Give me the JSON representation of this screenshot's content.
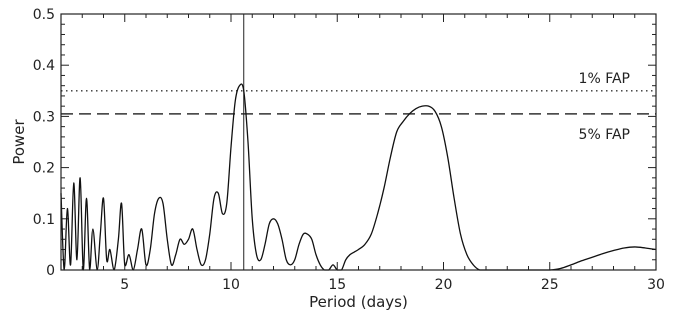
{
  "chart_data": {
    "type": "line",
    "title": "",
    "xlabel": "Period (days)",
    "ylabel": "Power",
    "xlim": [
      2,
      30
    ],
    "ylim": [
      0,
      0.5
    ],
    "x_ticks": [
      5,
      10,
      15,
      20,
      25,
      30
    ],
    "y_ticks": [
      0,
      0.1,
      0.2,
      0.3,
      0.4,
      0.5
    ],
    "x_tick_labels": [
      "5",
      "10",
      "15",
      "20",
      "25",
      "30"
    ],
    "y_tick_labels": [
      "0",
      "0.1",
      "0.2",
      "0.3",
      "0.4",
      "0.5"
    ],
    "grid": false,
    "legend": "none",
    "thresholds": [
      {
        "label": "1% FAP",
        "y": 0.35,
        "style": "dotted"
      },
      {
        "label": "5% FAP",
        "y": 0.305,
        "style": "dashed"
      }
    ],
    "marker_line": {
      "x": 10.6
    },
    "series": [
      {
        "x": [
          2.0,
          2.15,
          2.3,
          2.45,
          2.6,
          2.75,
          2.9,
          3.05,
          3.2,
          3.35,
          3.5,
          3.7,
          3.85,
          4.0,
          4.15,
          4.3,
          4.5,
          4.7,
          4.85,
          5.0,
          5.2,
          5.4,
          5.6,
          5.8,
          6.0,
          6.2,
          6.4,
          6.6,
          6.8,
          7.0,
          7.2,
          7.4,
          7.6,
          7.8,
          8.0,
          8.2,
          8.4,
          8.6,
          8.8,
          9.0,
          9.2,
          9.4,
          9.6,
          9.8,
          10.0,
          10.2,
          10.4,
          10.6,
          10.8,
          11.0,
          11.2,
          11.4,
          11.6,
          11.8,
          12.0,
          12.2,
          12.4,
          12.6,
          12.8,
          13.0,
          13.2,
          13.4,
          13.6,
          13.8,
          14.0,
          14.2,
          14.4,
          14.6,
          14.8,
          15.0,
          15.2,
          15.4,
          15.6,
          15.8,
          16.0,
          16.3,
          16.6,
          16.9,
          17.2,
          17.5,
          17.8,
          18.1,
          18.4,
          18.7,
          19.0,
          19.3,
          19.6,
          19.9,
          20.2,
          20.5,
          20.8,
          21.1,
          21.4,
          21.7,
          22.0,
          22.3,
          22.6,
          22.9,
          23.2,
          23.5,
          24.0,
          24.5,
          25.0,
          25.5,
          26.0,
          26.5,
          27.0,
          27.5,
          28.0,
          28.5,
          29.0,
          29.5,
          30.0
        ],
        "y": [
          0.15,
          0.0,
          0.12,
          0.01,
          0.17,
          0.02,
          0.18,
          0.0,
          0.14,
          0.0,
          0.08,
          0.0,
          0.07,
          0.14,
          0.02,
          0.04,
          0.0,
          0.06,
          0.13,
          0.01,
          0.03,
          0.0,
          0.04,
          0.08,
          0.01,
          0.04,
          0.11,
          0.14,
          0.13,
          0.06,
          0.01,
          0.03,
          0.06,
          0.05,
          0.06,
          0.08,
          0.04,
          0.01,
          0.02,
          0.07,
          0.14,
          0.15,
          0.11,
          0.13,
          0.24,
          0.33,
          0.36,
          0.35,
          0.25,
          0.1,
          0.03,
          0.02,
          0.05,
          0.09,
          0.1,
          0.09,
          0.06,
          0.02,
          0.01,
          0.02,
          0.05,
          0.07,
          0.07,
          0.06,
          0.03,
          0.01,
          0.0,
          0.0,
          0.01,
          0.0,
          0.0,
          0.02,
          0.03,
          0.035,
          0.04,
          0.05,
          0.07,
          0.11,
          0.16,
          0.22,
          0.27,
          0.29,
          0.305,
          0.315,
          0.32,
          0.32,
          0.31,
          0.28,
          0.22,
          0.14,
          0.07,
          0.03,
          0.01,
          0.0,
          0.0,
          0.0,
          0.0,
          0.0,
          0.0,
          0.0,
          0.0,
          0.0,
          0.0,
          0.003,
          0.01,
          0.018,
          0.025,
          0.032,
          0.038,
          0.043,
          0.045,
          0.043,
          0.04
        ]
      }
    ]
  }
}
